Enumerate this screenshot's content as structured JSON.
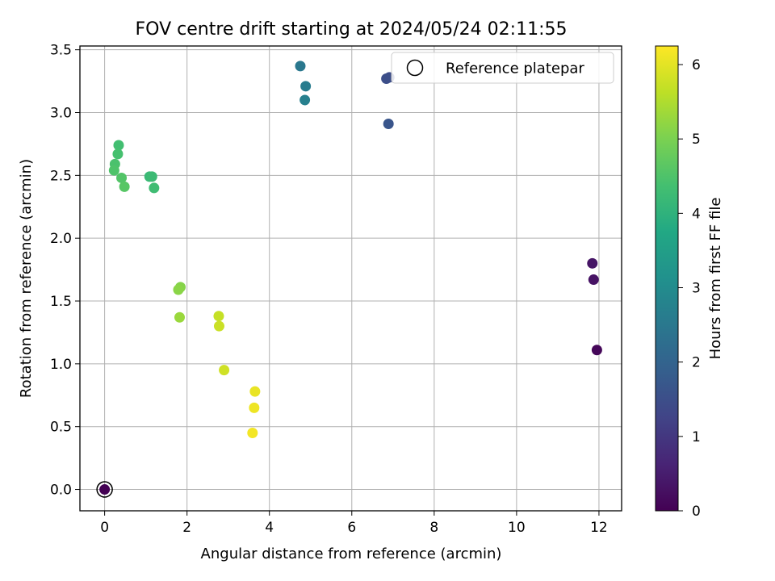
{
  "chart_data": {
    "type": "scatter",
    "title": "FOV centre drift starting at 2024/05/24 02:11:55",
    "xlabel": "Angular distance from reference (arcmin)",
    "ylabel": "Rotation from reference (arcmin)",
    "xlim": [
      -0.6,
      12.55
    ],
    "ylim": [
      -0.17,
      3.53
    ],
    "xticks": [
      0,
      2,
      4,
      6,
      8,
      10,
      12
    ],
    "xtick_labels": [
      "0",
      "2",
      "4",
      "6",
      "8",
      "10",
      "12"
    ],
    "yticks": [
      0.0,
      0.5,
      1.0,
      1.5,
      2.0,
      2.5,
      3.0,
      3.5
    ],
    "ytick_labels": [
      "0.0",
      "0.5",
      "1.0",
      "1.5",
      "2.0",
      "2.5",
      "3.0",
      "3.5"
    ],
    "grid": true,
    "legend": {
      "placement": "top-right",
      "entries": [
        "Reference platepar"
      ]
    },
    "reference_point": {
      "x": 0,
      "y": 0
    },
    "colorbar": {
      "label": "Hours from first FF file",
      "range": [
        0,
        6.25
      ],
      "ticks": [
        0,
        1,
        2,
        3,
        4,
        5,
        6
      ],
      "tick_labels": [
        "0",
        "1",
        "2",
        "3",
        "4",
        "5",
        "6"
      ],
      "colormap": "viridis"
    },
    "points": [
      {
        "x": 0.0,
        "y": 0.0,
        "hours": 0.0
      },
      {
        "x": 11.95,
        "y": 1.11,
        "hours": 0.1
      },
      {
        "x": 11.87,
        "y": 1.67,
        "hours": 0.3
      },
      {
        "x": 11.84,
        "y": 1.8,
        "hours": 0.35
      },
      {
        "x": 6.91,
        "y": 3.28,
        "hours": 1.45
      },
      {
        "x": 6.84,
        "y": 3.27,
        "hours": 1.5
      },
      {
        "x": 6.89,
        "y": 2.91,
        "hours": 1.65
      },
      {
        "x": 4.75,
        "y": 3.37,
        "hours": 2.5
      },
      {
        "x": 4.88,
        "y": 3.21,
        "hours": 2.6
      },
      {
        "x": 4.86,
        "y": 3.1,
        "hours": 2.7
      },
      {
        "x": 1.09,
        "y": 2.49,
        "hours": 4.2
      },
      {
        "x": 1.15,
        "y": 2.49,
        "hours": 4.25
      },
      {
        "x": 1.2,
        "y": 2.4,
        "hours": 4.3
      },
      {
        "x": 0.34,
        "y": 2.74,
        "hours": 4.35
      },
      {
        "x": 0.32,
        "y": 2.67,
        "hours": 4.4
      },
      {
        "x": 0.25,
        "y": 2.59,
        "hours": 4.45
      },
      {
        "x": 0.23,
        "y": 2.54,
        "hours": 4.5
      },
      {
        "x": 0.41,
        "y": 2.48,
        "hours": 4.55
      },
      {
        "x": 0.48,
        "y": 2.41,
        "hours": 4.6
      },
      {
        "x": 1.84,
        "y": 1.61,
        "hours": 5.1
      },
      {
        "x": 1.79,
        "y": 1.59,
        "hours": 5.15
      },
      {
        "x": 1.82,
        "y": 1.37,
        "hours": 5.3
      },
      {
        "x": 2.77,
        "y": 1.38,
        "hours": 5.7
      },
      {
        "x": 2.78,
        "y": 1.3,
        "hours": 5.75
      },
      {
        "x": 2.9,
        "y": 0.95,
        "hours": 5.8
      },
      {
        "x": 3.65,
        "y": 0.78,
        "hours": 6.05
      },
      {
        "x": 3.63,
        "y": 0.65,
        "hours": 6.1
      },
      {
        "x": 3.59,
        "y": 0.45,
        "hours": 6.15
      }
    ]
  }
}
